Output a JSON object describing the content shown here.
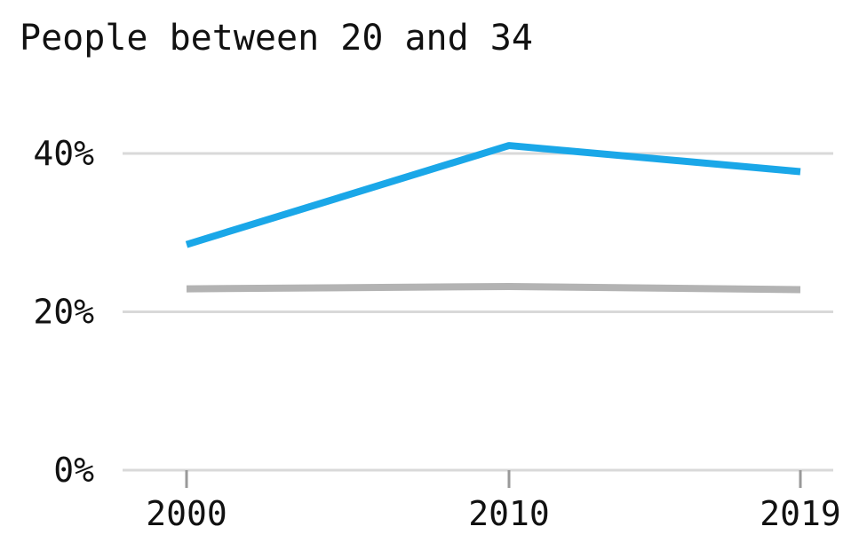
{
  "chart_data": {
    "type": "line",
    "title": "People between 20 and 34",
    "x": [
      2000,
      2010,
      2019
    ],
    "x_tick_labels": [
      "2000",
      "2010",
      "2019"
    ],
    "y_tick_values": [
      0,
      20,
      40
    ],
    "y_tick_labels": [
      "0%",
      "20%",
      "40%"
    ],
    "ylim": [
      0,
      40
    ],
    "grid": true,
    "series": [
      {
        "values": [
          28.5,
          41.0,
          37.7
        ],
        "color": "#1aa7e8"
      },
      {
        "values": [
          22.9,
          23.2,
          22.8
        ],
        "color": "#b3b3b3"
      }
    ]
  }
}
